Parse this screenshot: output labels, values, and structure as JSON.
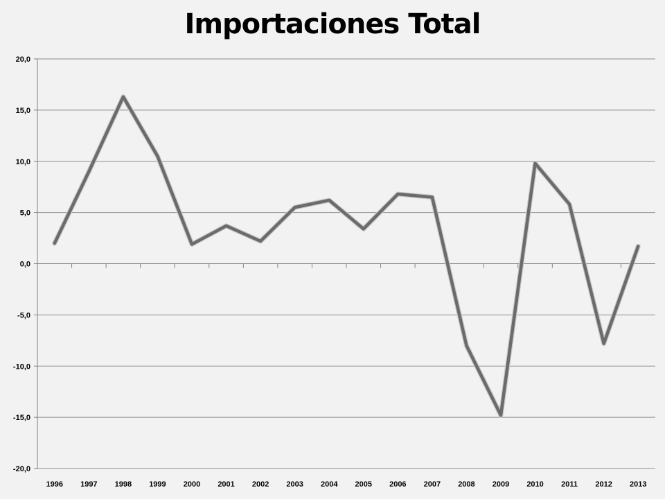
{
  "chart_data": {
    "type": "line",
    "title": "Importaciones Total",
    "xlabel": "",
    "ylabel": "",
    "categories": [
      "1996",
      "1997",
      "1998",
      "1999",
      "2000",
      "2001",
      "2002",
      "2003",
      "2004",
      "2005",
      "2006",
      "2007",
      "2008",
      "2009",
      "2010",
      "2011",
      "2012",
      "2013"
    ],
    "series": [
      {
        "values": [
          2.0,
          9.0,
          16.3,
          10.5,
          1.9,
          3.7,
          2.2,
          5.5,
          6.2,
          3.4,
          6.8,
          6.5,
          -8.0,
          -14.8,
          9.8,
          5.8,
          -7.8,
          1.7
        ]
      }
    ],
    "ylim": [
      -20,
      20
    ],
    "y_ticks": [
      "-20,0",
      "-15,0",
      "-10,0",
      "-5,0",
      "0,0",
      "5,0",
      "10,0",
      "15,0",
      "20,0"
    ],
    "grid": "horizontal",
    "legend": "none",
    "colors": {
      "background": "#f2f2f2",
      "line": "#6b6b6b",
      "grid": "#8c8c8c",
      "axis": "#7f7f7f"
    }
  }
}
